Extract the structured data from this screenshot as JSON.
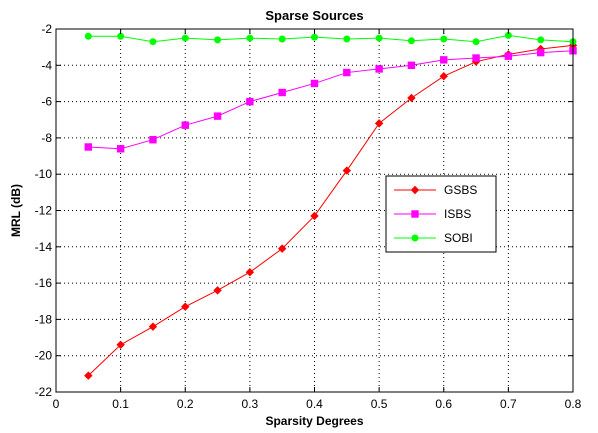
{
  "chart_data": {
    "type": "line",
    "title": "Sparse Sources",
    "xlabel": "Sparsity Degrees",
    "ylabel": "MRL (dB)",
    "xlim": [
      0,
      0.8
    ],
    "ylim": [
      -22,
      -2
    ],
    "xticks": [
      "0",
      "0.1",
      "0.2",
      "0.3",
      "0.4",
      "0.5",
      "0.6",
      "0.7",
      "0.8"
    ],
    "yticks": [
      "-2",
      "-4",
      "-6",
      "-8",
      "-10",
      "-12",
      "-14",
      "-16",
      "-18",
      "-20",
      "-22"
    ],
    "grid": true,
    "legend_position": "middle-right",
    "x": [
      0.05,
      0.1,
      0.15,
      0.2,
      0.25,
      0.3,
      0.35,
      0.4,
      0.45,
      0.5,
      0.55,
      0.6,
      0.65,
      0.7,
      0.75,
      0.8
    ],
    "series": [
      {
        "name": "GSBS",
        "color": "#ff0000",
        "marker": "diamond",
        "values": [
          -21.1,
          -19.4,
          -18.4,
          -17.3,
          -16.4,
          -15.4,
          -14.1,
          -12.3,
          -9.8,
          -7.2,
          -5.8,
          -4.6,
          -3.8,
          -3.4,
          -3.1,
          -2.9
        ]
      },
      {
        "name": "ISBS",
        "color": "#ff00ff",
        "marker": "square",
        "values": [
          -8.5,
          -8.6,
          -8.1,
          -7.3,
          -6.8,
          -6.0,
          -5.5,
          -5.0,
          -4.4,
          -4.2,
          -4.0,
          -3.7,
          -3.6,
          -3.5,
          -3.3,
          -3.2
        ]
      },
      {
        "name": "SOBI",
        "color": "#00ff00",
        "marker": "circle",
        "values": [
          -2.4,
          -2.4,
          -2.7,
          -2.5,
          -2.6,
          -2.5,
          -2.55,
          -2.45,
          -2.55,
          -2.5,
          -2.65,
          -2.55,
          -2.7,
          -2.35,
          -2.6,
          -2.7
        ]
      }
    ]
  }
}
